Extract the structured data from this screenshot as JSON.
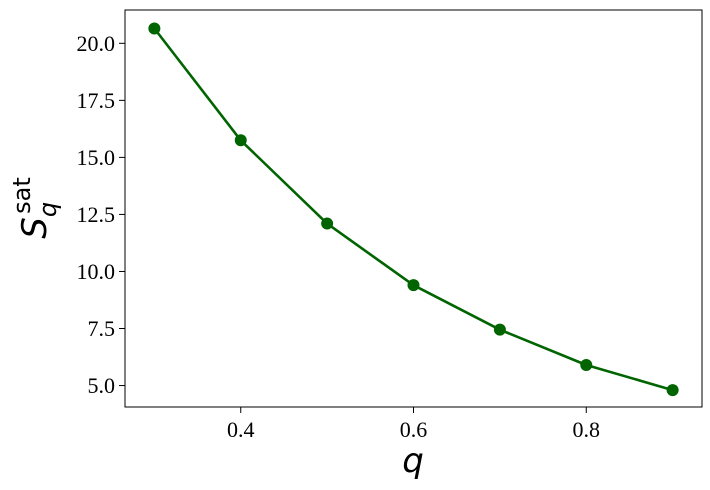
{
  "chart_data": {
    "type": "line",
    "xlabel": "q",
    "ylabel": {
      "base": "S",
      "sub": "q",
      "sup": "sat"
    },
    "xlim": [
      0.266,
      0.934
    ],
    "ylim": [
      4.06,
      21.46
    ],
    "xticks": [
      0.4,
      0.6,
      0.8
    ],
    "xtick_labels": [
      "0.4",
      "0.6",
      "0.8"
    ],
    "yticks": [
      5.0,
      7.5,
      10.0,
      12.5,
      15.0,
      17.5,
      20.0
    ],
    "ytick_labels": [
      "5.0",
      "7.5",
      "10.0",
      "12.5",
      "15.0",
      "17.5",
      "20.0"
    ],
    "grid": false,
    "colors": {
      "series": "#006400"
    },
    "series": [
      {
        "x": [
          0.3,
          0.4,
          0.5,
          0.6,
          0.7,
          0.8,
          0.9
        ],
        "y": [
          20.65,
          15.75,
          12.1,
          9.4,
          7.45,
          5.9,
          4.8
        ],
        "marker": "circle"
      }
    ]
  }
}
